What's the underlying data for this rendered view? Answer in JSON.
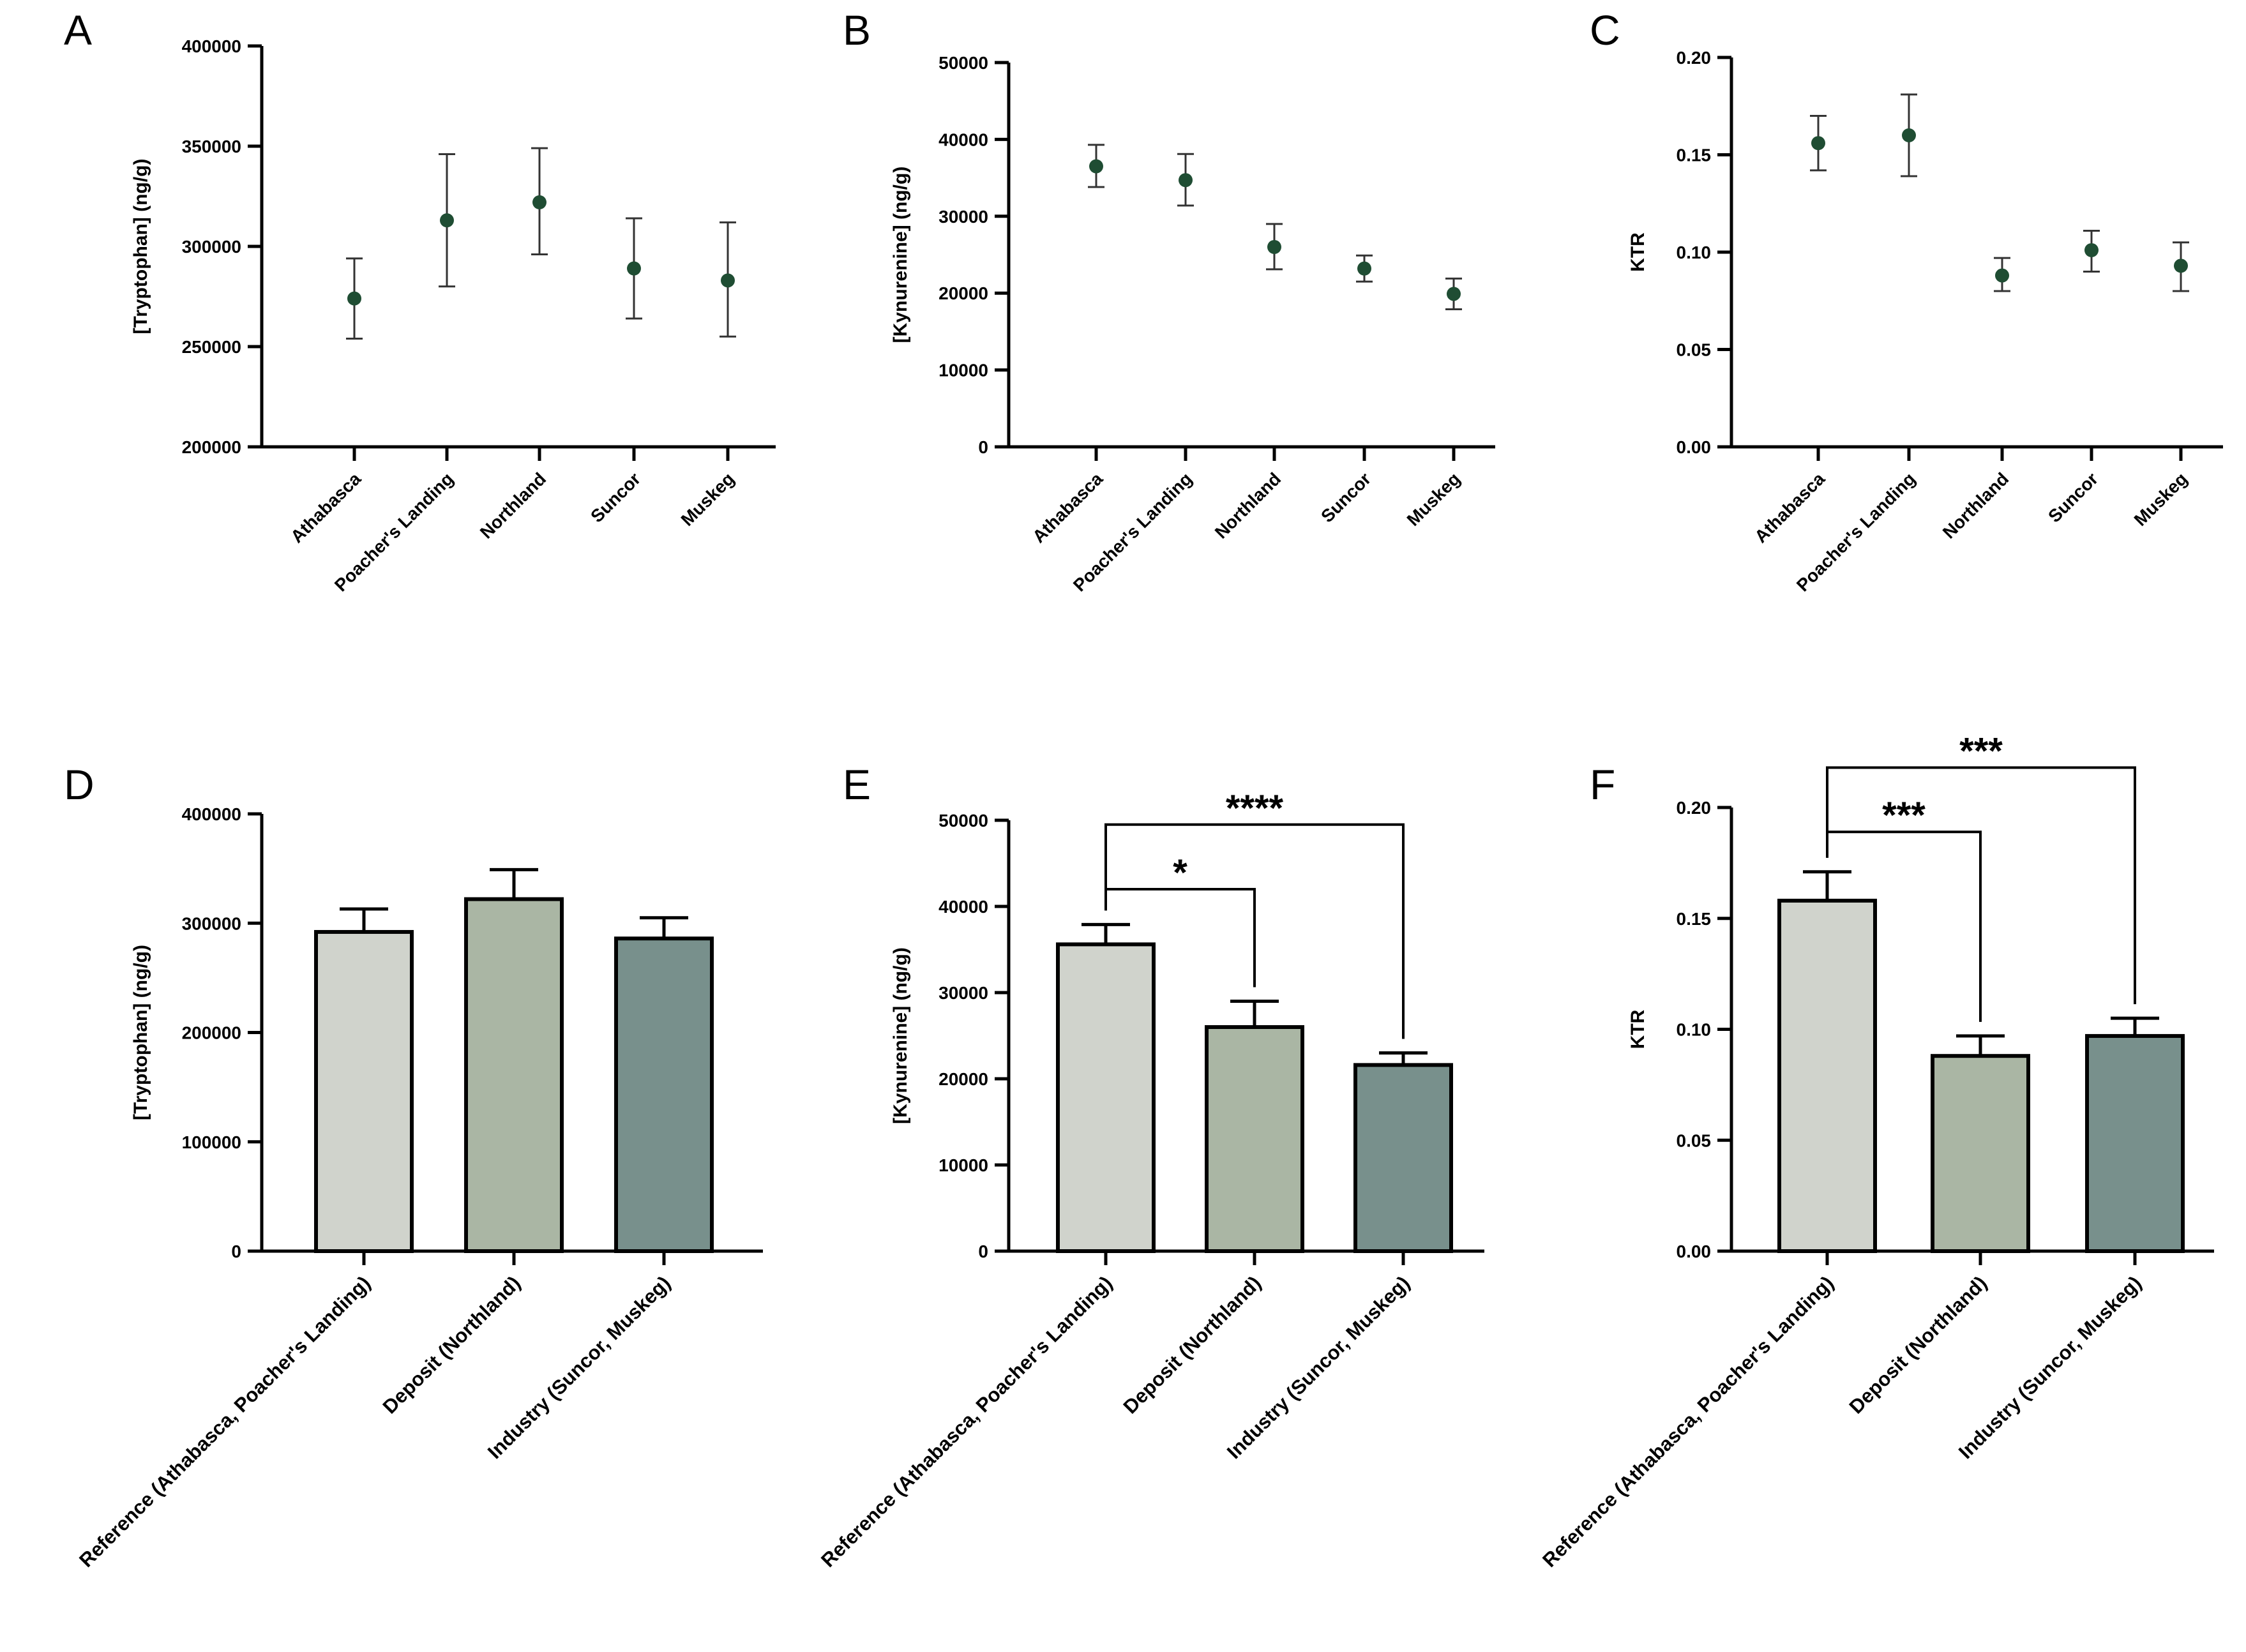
{
  "colors": {
    "point": "#1f4d33",
    "axis": "#000000",
    "reference_bar": "#d0d3cc",
    "deposit_bar": "#aab6a4",
    "industry_bar": "#78908c"
  },
  "chart_data": [
    {
      "id": "A",
      "type": "scatter",
      "letter": "A",
      "ylabel": "[Tryptophan] (ng/g)",
      "categories": [
        "Athabasca",
        "Poacher's Landing",
        "Northland",
        "Suncor",
        "Muskeg"
      ],
      "values": [
        274000,
        313000,
        322000,
        289000,
        283000
      ],
      "err_low": [
        254000,
        280000,
        296000,
        264000,
        255000
      ],
      "err_high": [
        294000,
        346000,
        349000,
        314000,
        312000
      ],
      "ylim": [
        200000,
        400000
      ],
      "yticks": [
        200000,
        250000,
        300000,
        350000,
        400000
      ],
      "ytick_labels": [
        "200000",
        "250000",
        "300000",
        "350000",
        "400000"
      ]
    },
    {
      "id": "B",
      "type": "scatter",
      "letter": "B",
      "ylabel": "[Kynurenine] (ng/g)",
      "categories": [
        "Athabasca",
        "Poacher's Landing",
        "Northland",
        "Suncor",
        "Muskeg"
      ],
      "values": [
        36500,
        34700,
        26000,
        23200,
        19900
      ],
      "err_low": [
        33800,
        31400,
        23100,
        21500,
        17900
      ],
      "err_high": [
        39300,
        38100,
        29000,
        24900,
        21900
      ],
      "ylim": [
        0,
        50000
      ],
      "yticks": [
        0,
        10000,
        20000,
        30000,
        40000,
        50000
      ],
      "ytick_labels": [
        "0",
        "10000",
        "20000",
        "30000",
        "40000",
        "50000"
      ]
    },
    {
      "id": "C",
      "type": "scatter",
      "letter": "C",
      "ylabel": "KTR",
      "categories": [
        "Athabasca",
        "Poacher's Landing",
        "Northland",
        "Suncor",
        "Muskeg"
      ],
      "values": [
        0.156,
        0.16,
        0.088,
        0.101,
        0.093
      ],
      "err_low": [
        0.142,
        0.139,
        0.08,
        0.09,
        0.08
      ],
      "err_high": [
        0.17,
        0.181,
        0.097,
        0.111,
        0.105
      ],
      "ylim": [
        0,
        0.2
      ],
      "yticks": [
        0,
        0.05,
        0.1,
        0.15,
        0.2
      ],
      "ytick_labels": [
        "0.00",
        "0.05",
        "0.10",
        "0.15",
        "0.20"
      ]
    },
    {
      "id": "D",
      "type": "bar",
      "letter": "D",
      "ylabel": "[Tryptophan] (ng/g)",
      "categories": [
        "Reference (Athabasca, Poacher's Landing)",
        "Deposit (Northland)",
        "Industry (Suncor, Muskeg)"
      ],
      "values": [
        292000,
        322000,
        286000
      ],
      "err_high": [
        313000,
        349000,
        305000
      ],
      "ylim": [
        0,
        400000
      ],
      "yticks": [
        0,
        100000,
        200000,
        300000,
        400000
      ],
      "ytick_labels": [
        "0",
        "100000",
        "200000",
        "300000",
        "400000"
      ],
      "significance": []
    },
    {
      "id": "E",
      "type": "bar",
      "letter": "E",
      "ylabel": "[Kynurenine] (ng/g)",
      "categories": [
        "Reference (Athabasca, Poacher's Landing)",
        "Deposit (Northland)",
        "Industry (Suncor, Muskeg)"
      ],
      "values": [
        35600,
        26000,
        21600
      ],
      "err_high": [
        37900,
        29000,
        23000
      ],
      "ylim": [
        0,
        50000
      ],
      "yticks": [
        0,
        10000,
        20000,
        30000,
        40000,
        50000
      ],
      "ytick_labels": [
        "0",
        "10000",
        "20000",
        "30000",
        "40000",
        "50000"
      ],
      "significance": [
        {
          "from": 0,
          "to": 1,
          "label": "*",
          "level": 42000
        },
        {
          "from": 0,
          "to": 2,
          "label": "****",
          "level": 49500
        }
      ]
    },
    {
      "id": "F",
      "type": "bar",
      "letter": "F",
      "ylabel": "KTR",
      "categories": [
        "Reference (Athabasca, Poacher's Landing)",
        "Deposit (Northland)",
        "Industry (Suncor, Muskeg)"
      ],
      "values": [
        0.158,
        0.088,
        0.097
      ],
      "err_high": [
        0.171,
        0.097,
        0.105
      ],
      "ylim": [
        0,
        0.2
      ],
      "yticks": [
        0,
        0.05,
        0.1,
        0.15,
        0.2
      ],
      "ytick_labels": [
        "0.00",
        "0.05",
        "0.10",
        "0.15",
        "0.20"
      ],
      "significance": [
        {
          "from": 0,
          "to": 1,
          "label": "***",
          "level": 0.189
        },
        {
          "from": 0,
          "to": 2,
          "label": "***",
          "level": 0.218
        }
      ]
    }
  ]
}
